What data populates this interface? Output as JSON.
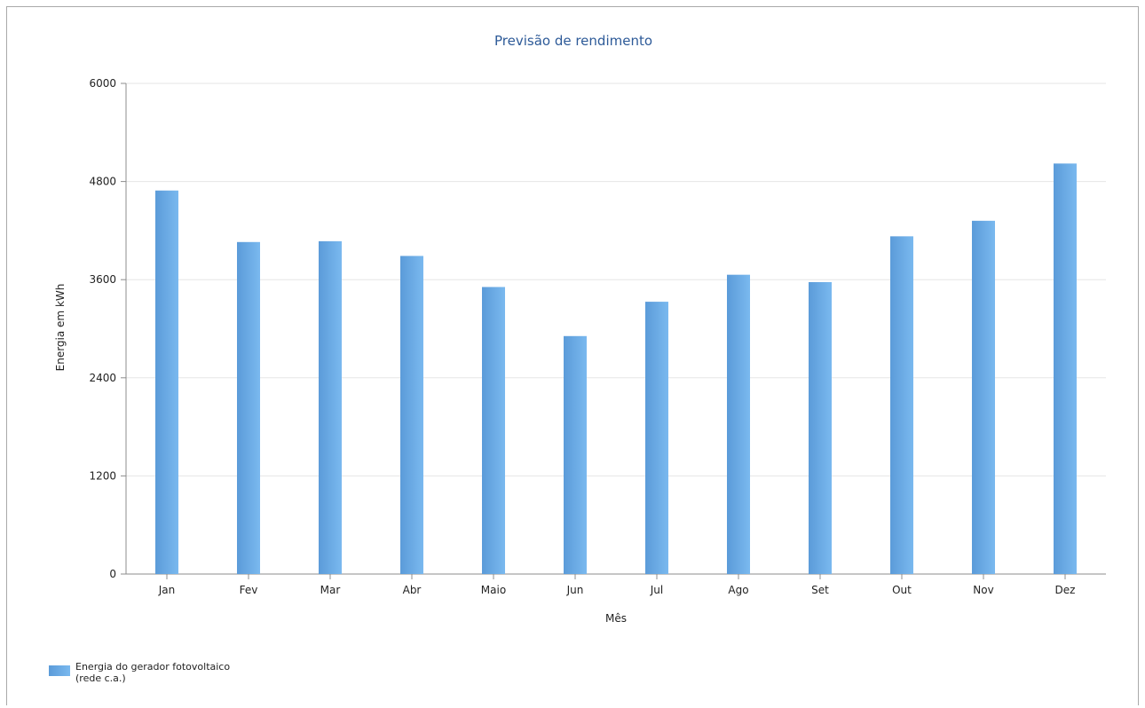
{
  "chart_data": {
    "type": "bar",
    "title": "Previsão de rendimento",
    "xlabel": "Mês",
    "ylabel": "Energia em kWh",
    "ylim": [
      0,
      6000
    ],
    "yticks": [
      0,
      1200,
      2400,
      3600,
      4800,
      6000
    ],
    "categories": [
      "Jan",
      "Fev",
      "Mar",
      "Abr",
      "Maio",
      "Jun",
      "Jul",
      "Ago",
      "Set",
      "Out",
      "Nov",
      "Dez"
    ],
    "series": [
      {
        "name": "Energia do gerador fotovoltaico (rede c.a.)",
        "name_lines": [
          "Energia do gerador fotovoltaico",
          "(rede c.a.)"
        ],
        "color": "#6fb0ea",
        "values": [
          4690,
          4060,
          4070,
          3890,
          3510,
          2910,
          3330,
          3660,
          3570,
          4130,
          4320,
          5020
        ]
      }
    ],
    "grid": true,
    "legend_position": "bottom-left"
  }
}
